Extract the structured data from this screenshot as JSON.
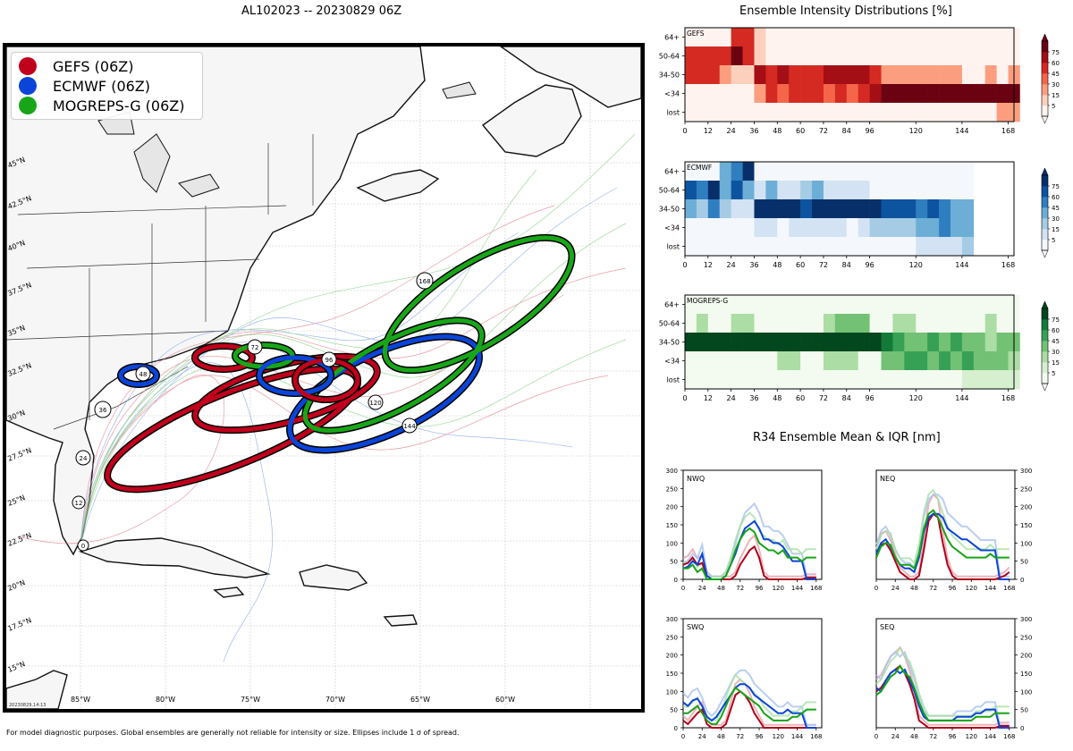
{
  "map": {
    "title": "AL102023 -- 20230829 06Z",
    "footnote": "For model diagnostic purposes. Global ensembles are generally not reliable for intensity or size. Ellipses include 1 σ of spread.",
    "stamp": "20230829.14:13",
    "lon_labels": [
      "85°W",
      "80°W",
      "75°W",
      "70°W",
      "65°W",
      "60°W"
    ],
    "lat_labels": [
      "15°N",
      "17.5°N",
      "20°N",
      "22.5°N",
      "25°N",
      "27.5°N",
      "30°N",
      "32.5°N",
      "35°N",
      "37.5°N",
      "40°N",
      "42.5°N",
      "45°N"
    ],
    "legend": [
      {
        "label": "GEFS (06Z)",
        "color": "#c0001c"
      },
      {
        "label": "ECMWF (06Z)",
        "color": "#0a45d8"
      },
      {
        "label": "MOGREPS-G (06Z)",
        "color": "#18a618"
      }
    ],
    "track_labels": [
      "0",
      "12",
      "24",
      "36",
      "48",
      "72",
      "96",
      "120",
      "144",
      "168"
    ]
  },
  "intensity": {
    "title": "Ensemble Intensity Distributions [%]",
    "row_labels": [
      "64+",
      "50-64",
      "34-50",
      "<34",
      "lost"
    ],
    "x_ticks": [
      0,
      12,
      24,
      36,
      48,
      60,
      72,
      84,
      96,
      120,
      144,
      168
    ],
    "colorbar_ticks": [
      75,
      60,
      45,
      30,
      15,
      5
    ],
    "panels": [
      {
        "name": "GEFS",
        "cmap": "red"
      },
      {
        "name": "ECMWF",
        "cmap": "blue"
      },
      {
        "name": "MOGREPS-G",
        "cmap": "green"
      }
    ]
  },
  "r34": {
    "title": "R34 Ensemble Mean & IQR [nm]",
    "y_ticks": [
      0,
      50,
      100,
      150,
      200,
      250,
      300
    ],
    "x_ticks": [
      0,
      24,
      48,
      72,
      96,
      120,
      144,
      168
    ],
    "panels": [
      "NWQ",
      "NEQ",
      "SWQ",
      "SEQ"
    ]
  },
  "chart_data": [
    {
      "type": "heatmap",
      "name": "GEFS",
      "x": [
        0,
        6,
        12,
        18,
        24,
        30,
        36,
        42,
        48,
        54,
        60,
        66,
        72,
        78,
        84,
        90,
        96,
        102,
        108,
        114,
        120,
        126,
        132,
        138,
        144,
        150,
        156,
        162,
        168
      ],
      "rows": [
        "64+",
        "50-64",
        "34-50",
        "<34",
        "lost"
      ],
      "values": [
        [
          0,
          0,
          0,
          0,
          45,
          45,
          10,
          0,
          0,
          0,
          0,
          0,
          0,
          0,
          0,
          0,
          0,
          0,
          0,
          0,
          0,
          0,
          0,
          0,
          0,
          0,
          0,
          0,
          0
        ],
        [
          45,
          50,
          50,
          55,
          80,
          45,
          10,
          0,
          0,
          0,
          0,
          0,
          0,
          0,
          0,
          0,
          0,
          0,
          0,
          0,
          0,
          0,
          0,
          0,
          0,
          0,
          0,
          0,
          0
        ],
        [
          55,
          45,
          45,
          20,
          10,
          10,
          60,
          45,
          60,
          50,
          50,
          45,
          60,
          60,
          60,
          60,
          45,
          25,
          25,
          25,
          25,
          25,
          20,
          20,
          0,
          0,
          15,
          0,
          15
        ],
        [
          0,
          0,
          0,
          0,
          0,
          0,
          25,
          45,
          30,
          50,
          45,
          55,
          40,
          55,
          40,
          55,
          60,
          80,
          80,
          80,
          80,
          80,
          80,
          80,
          80,
          80,
          80,
          80,
          80
        ],
        [
          0,
          0,
          0,
          0,
          0,
          0,
          0,
          0,
          0,
          0,
          0,
          0,
          0,
          0,
          0,
          0,
          0,
          0,
          0,
          0,
          0,
          0,
          0,
          0,
          0,
          0,
          0,
          15,
          15
        ]
      ]
    },
    {
      "type": "heatmap",
      "name": "ECMWF",
      "x": [
        0,
        6,
        12,
        18,
        24,
        30,
        36,
        42,
        48,
        54,
        60,
        66,
        72,
        78,
        84,
        90,
        96,
        102,
        108,
        114,
        120,
        126,
        132,
        138,
        144
      ],
      "rows": [
        "64+",
        "50-64",
        "34-50",
        "<34",
        "lost"
      ],
      "values": [
        [
          0,
          0,
          0,
          30,
          45,
          75,
          0,
          0,
          0,
          0,
          0,
          0,
          0,
          0,
          0,
          0,
          0,
          0,
          0,
          0,
          0,
          0,
          0,
          0,
          0
        ],
        [
          60,
          45,
          75,
          40,
          60,
          30,
          5,
          30,
          10,
          10,
          20,
          30,
          10,
          10,
          10,
          10,
          0,
          0,
          0,
          0,
          0,
          0,
          0,
          0,
          0
        ],
        [
          40,
          20,
          45,
          15,
          5,
          5,
          90,
          90,
          90,
          90,
          60,
          75,
          90,
          90,
          90,
          90,
          90,
          60,
          60,
          60,
          45,
          60,
          45,
          30,
          30
        ],
        [
          0,
          0,
          0,
          0,
          0,
          0,
          10,
          10,
          0,
          10,
          10,
          10,
          10,
          10,
          0,
          10,
          20,
          20,
          20,
          20,
          30,
          30,
          45,
          30,
          30
        ],
        [
          0,
          0,
          0,
          0,
          0,
          0,
          0,
          0,
          0,
          0,
          0,
          0,
          0,
          0,
          0,
          0,
          0,
          0,
          0,
          0,
          10,
          10,
          10,
          10,
          20
        ]
      ]
    },
    {
      "type": "heatmap",
      "name": "MOGREPS-G",
      "x": [
        0,
        6,
        12,
        18,
        24,
        30,
        36,
        42,
        48,
        54,
        60,
        66,
        72,
        78,
        84,
        90,
        96,
        102,
        108,
        114,
        120,
        126,
        132,
        138,
        144,
        150,
        156,
        162,
        168
      ],
      "rows": [
        "64+",
        "50-64",
        "34-50",
        "<34",
        "lost"
      ],
      "values": [
        [
          0,
          0,
          0,
          0,
          0,
          0,
          0,
          0,
          0,
          0,
          0,
          0,
          0,
          0,
          0,
          0,
          0,
          0,
          0,
          0,
          0,
          0,
          0,
          0,
          0,
          0,
          0,
          0,
          0
        ],
        [
          0,
          20,
          0,
          0,
          20,
          20,
          0,
          0,
          0,
          0,
          0,
          0,
          20,
          30,
          30,
          30,
          0,
          0,
          20,
          20,
          0,
          0,
          0,
          0,
          0,
          0,
          15,
          0,
          0
        ],
        [
          90,
          90,
          90,
          90,
          90,
          90,
          90,
          90,
          90,
          90,
          90,
          90,
          90,
          90,
          90,
          90,
          90,
          60,
          45,
          30,
          30,
          45,
          30,
          45,
          30,
          30,
          20,
          30,
          30
        ],
        [
          0,
          0,
          0,
          0,
          0,
          0,
          0,
          0,
          15,
          15,
          0,
          0,
          15,
          15,
          15,
          0,
          0,
          30,
          30,
          45,
          45,
          30,
          45,
          30,
          45,
          30,
          30,
          30,
          20
        ],
        [
          0,
          0,
          0,
          0,
          0,
          0,
          0,
          0,
          0,
          0,
          0,
          0,
          0,
          0,
          0,
          0,
          0,
          0,
          0,
          0,
          0,
          0,
          0,
          0,
          5,
          5,
          5,
          5,
          5
        ]
      ]
    },
    {
      "type": "line",
      "name": "NWQ",
      "x": [
        0,
        6,
        12,
        18,
        24,
        30,
        36,
        42,
        48,
        54,
        60,
        66,
        72,
        78,
        84,
        90,
        96,
        102,
        108,
        114,
        120,
        126,
        132,
        138,
        144,
        150,
        156,
        162,
        168
      ],
      "ylim": [
        0,
        300
      ],
      "series": [
        {
          "model": "GEFS",
          "values": [
            40,
            45,
            60,
            40,
            45,
            10,
            0,
            0,
            0,
            0,
            0,
            10,
            40,
            60,
            80,
            90,
            60,
            10,
            0,
            0,
            0,
            0,
            0,
            0,
            0,
            0,
            5,
            5,
            5
          ]
        },
        {
          "model": "ECMWF",
          "values": [
            30,
            35,
            50,
            40,
            70,
            10,
            0,
            0,
            0,
            10,
            40,
            70,
            110,
            140,
            150,
            160,
            140,
            110,
            110,
            100,
            100,
            90,
            70,
            50,
            50,
            50,
            0,
            0,
            0
          ]
        },
        {
          "model": "MOGREPS-G",
          "values": [
            30,
            30,
            40,
            20,
            30,
            0,
            0,
            0,
            0,
            10,
            40,
            80,
            110,
            130,
            140,
            130,
            100,
            90,
            80,
            80,
            70,
            80,
            60,
            60,
            60,
            50,
            60,
            60,
            60
          ]
        }
      ]
    },
    {
      "type": "line",
      "name": "NEQ",
      "x": [
        0,
        6,
        12,
        18,
        24,
        30,
        36,
        42,
        48,
        54,
        60,
        66,
        72,
        78,
        84,
        90,
        96,
        102,
        108,
        114,
        120,
        126,
        132,
        138,
        144,
        150,
        156,
        162,
        168
      ],
      "ylim": [
        0,
        300
      ],
      "series": [
        {
          "model": "GEFS",
          "values": [
            60,
            95,
            100,
            80,
            50,
            20,
            10,
            0,
            0,
            10,
            80,
            160,
            180,
            170,
            100,
            40,
            10,
            0,
            0,
            0,
            0,
            0,
            0,
            0,
            0,
            0,
            5,
            10,
            20
          ]
        },
        {
          "model": "ECMWF",
          "values": [
            70,
            100,
            110,
            90,
            60,
            40,
            30,
            30,
            20,
            60,
            130,
            170,
            180,
            180,
            170,
            140,
            130,
            120,
            110,
            110,
            100,
            90,
            80,
            80,
            80,
            80,
            0,
            0,
            0
          ]
        },
        {
          "model": "MOGREPS-G",
          "values": [
            60,
            90,
            100,
            95,
            60,
            40,
            40,
            40,
            30,
            70,
            140,
            180,
            190,
            170,
            140,
            110,
            90,
            80,
            70,
            60,
            60,
            60,
            60,
            60,
            70,
            60,
            60,
            60,
            60
          ]
        }
      ]
    },
    {
      "type": "line",
      "name": "SWQ",
      "x": [
        0,
        6,
        12,
        18,
        24,
        30,
        36,
        42,
        48,
        54,
        60,
        66,
        72,
        78,
        84,
        90,
        96,
        102,
        108,
        114,
        120,
        126,
        132,
        138,
        144,
        150,
        156,
        162,
        168
      ],
      "ylim": [
        0,
        300
      ],
      "series": [
        {
          "model": "GEFS",
          "values": [
            20,
            10,
            25,
            40,
            50,
            10,
            0,
            0,
            0,
            10,
            50,
            90,
            100,
            90,
            70,
            40,
            20,
            0,
            0,
            0,
            0,
            0,
            0,
            0,
            0,
            0,
            0,
            0,
            0
          ]
        },
        {
          "model": "ECMWF",
          "values": [
            70,
            60,
            75,
            80,
            60,
            30,
            20,
            30,
            50,
            70,
            90,
            110,
            120,
            120,
            110,
            90,
            80,
            70,
            60,
            50,
            40,
            40,
            50,
            40,
            40,
            40,
            0,
            0,
            0
          ]
        },
        {
          "model": "MOGREPS-G",
          "values": [
            40,
            40,
            50,
            60,
            40,
            20,
            10,
            10,
            30,
            60,
            90,
            110,
            100,
            90,
            80,
            70,
            60,
            40,
            30,
            20,
            20,
            20,
            20,
            30,
            30,
            40,
            50,
            50,
            50
          ]
        }
      ]
    },
    {
      "type": "line",
      "name": "SEQ",
      "x": [
        0,
        6,
        12,
        18,
        24,
        30,
        36,
        42,
        48,
        54,
        60,
        66,
        72,
        78,
        84,
        90,
        96,
        102,
        108,
        114,
        120,
        126,
        132,
        138,
        144,
        150,
        156,
        162,
        168
      ],
      "ylim": [
        0,
        300
      ],
      "series": [
        {
          "model": "GEFS",
          "values": [
            100,
            110,
            130,
            150,
            160,
            170,
            150,
            120,
            80,
            20,
            10,
            0,
            0,
            0,
            0,
            0,
            0,
            0,
            0,
            0,
            0,
            0,
            0,
            0,
            0,
            0,
            5,
            5,
            5
          ]
        },
        {
          "model": "ECMWF",
          "values": [
            110,
            100,
            130,
            150,
            160,
            150,
            160,
            130,
            100,
            60,
            30,
            20,
            20,
            20,
            20,
            20,
            20,
            30,
            30,
            30,
            30,
            40,
            40,
            50,
            50,
            50,
            0,
            0,
            0
          ]
        },
        {
          "model": "MOGREPS-G",
          "values": [
            90,
            100,
            120,
            140,
            150,
            170,
            150,
            140,
            110,
            70,
            40,
            20,
            20,
            20,
            20,
            20,
            20,
            20,
            20,
            20,
            20,
            30,
            30,
            30,
            30,
            40,
            40,
            40,
            40
          ]
        }
      ]
    }
  ]
}
